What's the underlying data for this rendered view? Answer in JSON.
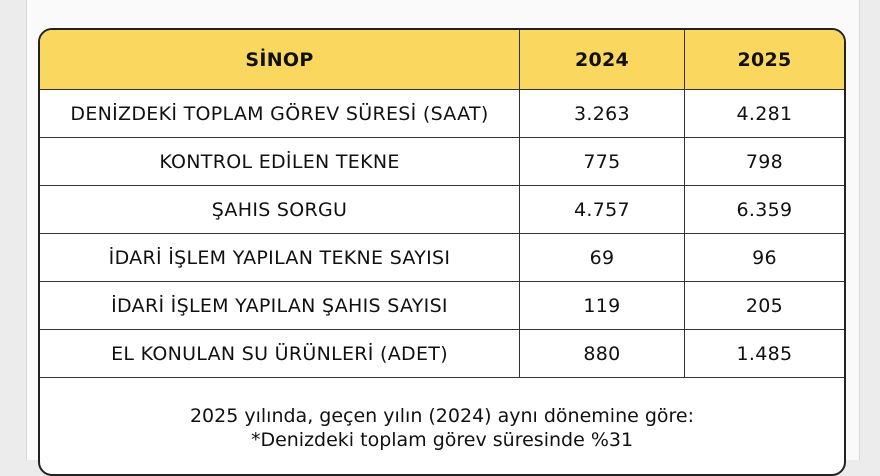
{
  "table": {
    "headers": [
      "SİNOP",
      "2024",
      "2025"
    ],
    "rows": [
      {
        "label": "DENİZDEKİ TOPLAM GÖREV SÜRESİ (SAAT)",
        "y2024": "3.263",
        "y2025": "4.281"
      },
      {
        "label": "KONTROL EDİLEN TEKNE",
        "y2024": "775",
        "y2025": "798"
      },
      {
        "label": "ŞAHIS SORGU",
        "y2024": "4.757",
        "y2025": "6.359"
      },
      {
        "label": "İDARİ İŞLEM YAPILAN TEKNE SAYISI",
        "y2024": "69",
        "y2025": "96"
      },
      {
        "label": "İDARİ İŞLEM YAPILAN ŞAHIS SAYISI",
        "y2024": "119",
        "y2025": "205"
      },
      {
        "label": "EL KONULAN SU ÜRÜNLERİ (ADET)",
        "y2024": "880",
        "y2025": "1.485"
      }
    ]
  },
  "footer": {
    "line1": "2025 yılında, geçen yılın (2024) aynı dönemine göre:",
    "line2": "*Denizdeki toplam görev süresinde %31"
  },
  "colors": {
    "header_bg": "#fad75e",
    "border": "#222222"
  }
}
